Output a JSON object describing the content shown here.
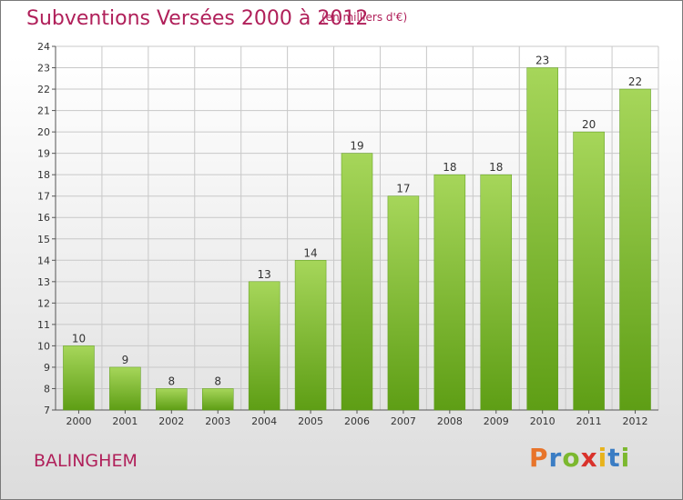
{
  "header": {
    "title": "Subventions Versées 2000 à 2012",
    "subtitle": "(en milliers d'€)"
  },
  "footer": {
    "place": "BALINGHEM",
    "logo_text": "Proxiti",
    "logo_colors": [
      "#e8742a",
      "#3b7dc4",
      "#7cb82f",
      "#d9322b",
      "#e8b31c",
      "#3b7dc4",
      "#7cb82f"
    ]
  },
  "chart_data": {
    "type": "bar",
    "categories": [
      "2000",
      "2001",
      "2002",
      "2003",
      "2004",
      "2005",
      "2006",
      "2007",
      "2008",
      "2009",
      "2010",
      "2011",
      "2012"
    ],
    "values": [
      10,
      9,
      8,
      8,
      13,
      14,
      19,
      17,
      18,
      18,
      23,
      20,
      22
    ],
    "ylim": [
      7,
      24
    ],
    "yticks": [
      7,
      8,
      9,
      10,
      11,
      12,
      13,
      14,
      15,
      16,
      17,
      18,
      19,
      20,
      21,
      22,
      23,
      24
    ],
    "grid": true,
    "bar_color_top": "#a6d65a",
    "bar_color_bottom": "#5e9e15",
    "label_color": "#333333"
  }
}
